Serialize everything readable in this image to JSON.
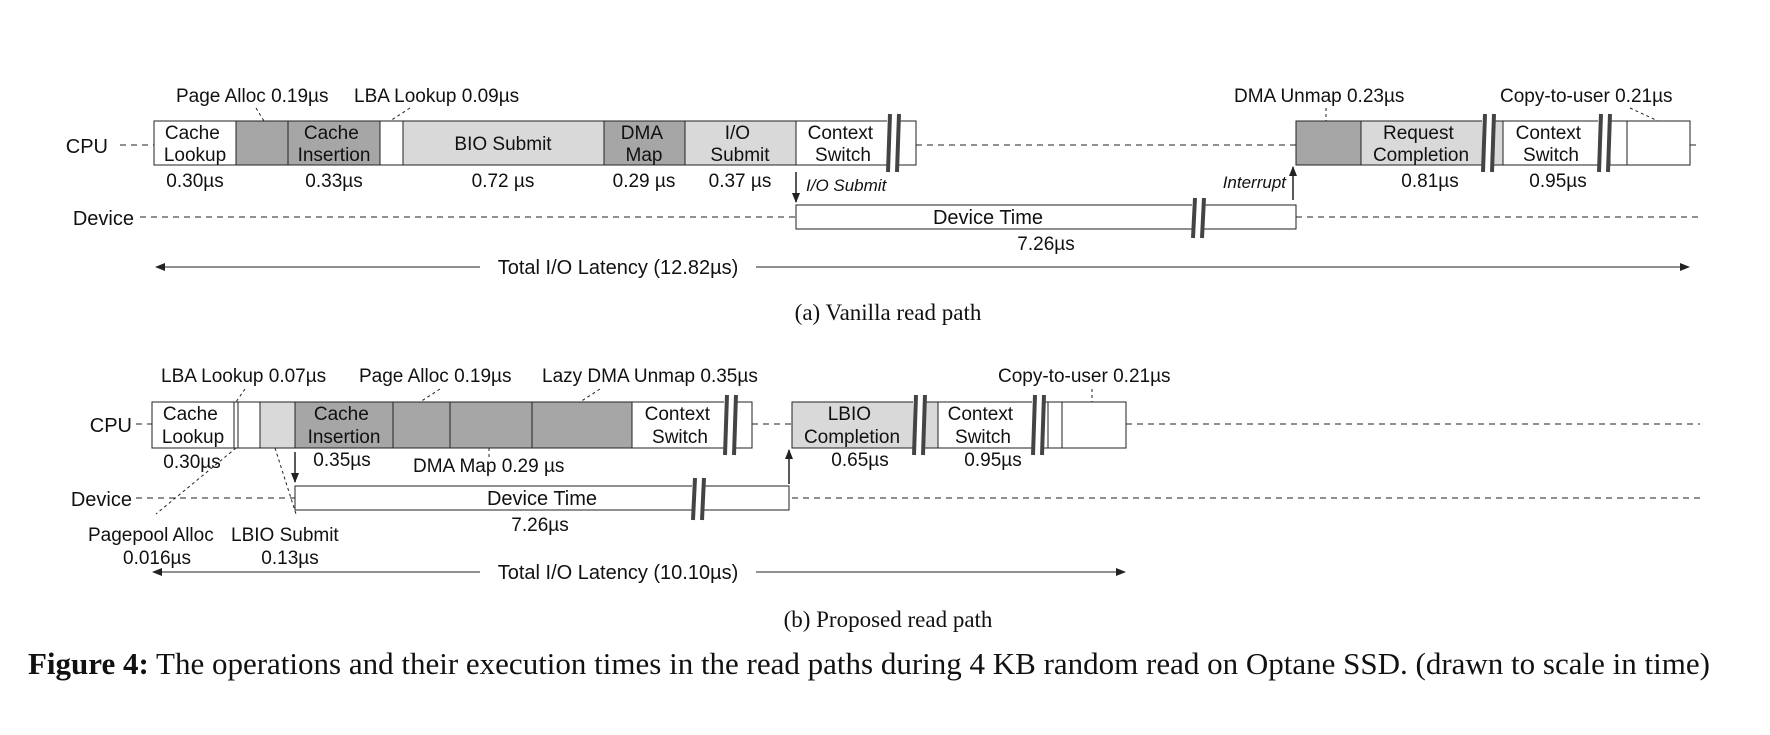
{
  "row_labels": {
    "cpu": "CPU",
    "device": "Device"
  },
  "panel_a": {
    "subtitle": "(a)  Vanilla read path",
    "boxes": {
      "cache_lookup": [
        "Cache",
        "Lookup"
      ],
      "cache_insertion": [
        "Cache",
        "Insertion"
      ],
      "bio_submit": "BIO Submit",
      "dma_map": [
        "DMA",
        "Map"
      ],
      "io_submit": [
        "I/O",
        "Submit"
      ],
      "context_switch_1": [
        "Context",
        "Switch"
      ],
      "request_completion": [
        "Request",
        "Completion"
      ],
      "context_switch_2": [
        "Context",
        "Switch"
      ],
      "device_time": "Device Time"
    },
    "top_labels": {
      "page_alloc": "Page Alloc 0.19µs",
      "lba_lookup": "LBA Lookup 0.09µs",
      "dma_unmap": "DMA Unmap 0.23µs",
      "copy_to_user": "Copy-to-user 0.21µs"
    },
    "times": {
      "cache_lookup": "0.30µs",
      "cache_insertion": "0.33µs",
      "bio_submit": "0.72 µs",
      "dma_map": "0.29 µs",
      "io_submit": "0.37 µs",
      "request_completion": "0.81µs",
      "context_switch": "0.95µs",
      "device_time": "7.26µs"
    },
    "arrows": {
      "io_submit": "I/O Submit",
      "interrupt": "Interrupt"
    },
    "total": "Total I/O Latency (12.82µs)"
  },
  "panel_b": {
    "subtitle": "(b)  Proposed read path",
    "boxes": {
      "cache_lookup": [
        "Cache",
        "Lookup"
      ],
      "cache_insertion": [
        "Cache",
        "Insertion"
      ],
      "context_switch_1": [
        "Context",
        "Switch"
      ],
      "lbio_completion": [
        "LBIO",
        "Completion"
      ],
      "context_switch_2": [
        "Context",
        "Switch"
      ],
      "device_time": "Device Time"
    },
    "top_labels": {
      "lba_lookup": "LBA Lookup 0.07µs",
      "page_alloc": "Page Alloc 0.19µs",
      "lazy_dma_unmap": "Lazy DMA Unmap 0.35µs",
      "copy_to_user": "Copy-to-user 0.21µs"
    },
    "times": {
      "cache_lookup": "0.30µs",
      "cache_insertion": "0.35µs",
      "dma_map": "DMA Map 0.29 µs",
      "lbio_completion": "0.65µs",
      "context_switch": "0.95µs",
      "device_time": "7.26µs"
    },
    "bottom_labels": {
      "pagepool_alloc": "Pagepool Alloc",
      "pagepool_alloc_time": "0.016µs",
      "lbio_submit": "LBIO Submit",
      "lbio_submit_time": "0.13µs"
    },
    "total": "Total I/O Latency (10.10µs)"
  },
  "caption": {
    "label": "Figure 4:",
    "text": " The operations and their execution times in the read paths during 4 KB random read on Optane SSD. (drawn to scale in time)"
  },
  "colors": {
    "dark": "#a6a6a6",
    "light": "#d9d9d9",
    "white": "#ffffff",
    "line": "#222222"
  }
}
